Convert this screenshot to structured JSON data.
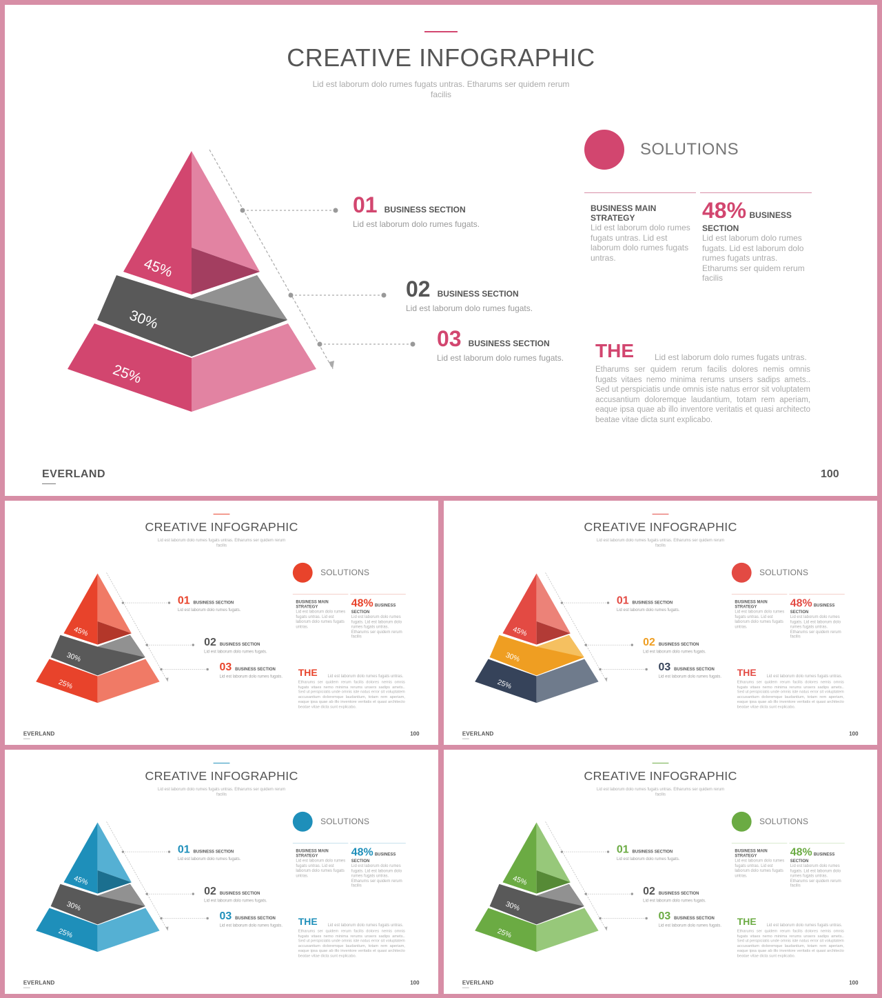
{
  "title": "CREATIVE INFOGRAPHIC",
  "subtitle": "Lid est laborum dolo rumes fugats untras. Etharums ser quidem rerum facilis",
  "pyramid": {
    "levels": [
      {
        "label": "45%",
        "value": 45
      },
      {
        "label": "30%",
        "value": 30
      },
      {
        "label": "25%",
        "value": 25
      }
    ]
  },
  "sections": [
    {
      "num": "01",
      "title": "BUSINESS SECTION",
      "desc": "Lid est laborum dolo rumes fugats."
    },
    {
      "num": "02",
      "title": "BUSINESS SECTION",
      "desc": "Lid est laborum dolo rumes fugats."
    },
    {
      "num": "03",
      "title": "BUSINESS SECTION",
      "desc": "Lid est laborum dolo rumes fugats."
    }
  ],
  "solutions": {
    "label": "SOLUTIONS",
    "strategy_title": "BUSINESS MAIN STRATEGY",
    "strategy_text": "Lid est laborum dolo rumes fugats untras. Lid est laborum dolo rumes fugats untras.",
    "percent": "48%",
    "percent_label_1": "BUSINESS",
    "percent_label_2": "SECTION",
    "percent_text": "Lid est laborum dolo rumes fugats. Lid est laborum dolo rumes fugats untras. Etharums ser quidem rerum facilis"
  },
  "the_block": {
    "heading": "THE",
    "heading_text": "Lid est laborum dolo rumes fugats untras.",
    "body": "Etharums ser quidem rerum facilis dolores nemis omnis fugats vitaes nemo minima rerums unsers sadips amets.. Sed ut perspiciatis unde omnis iste natus error sit voluptatem accusantium doloremque laudantium, totam rem aperiam, eaque ipsa quae ab illo inventore veritatis et quasi architecto beatae vitae dicta sunt explicabo."
  },
  "brand": "EVERLAND",
  "page_number": "100",
  "variants": [
    {
      "name": "pink",
      "accent": "#d2466f",
      "top_dark": "#d2466f",
      "top_light": "#e283a2",
      "top_shadow": "#a33e60",
      "mid_dark": "#595959",
      "mid_light": "#919191",
      "bot_dark": "#d2466f",
      "bot_light": "#e283a2",
      "num_colors": [
        "#d2466f",
        "#555555",
        "#d2466f"
      ],
      "line": "#d78ea6"
    },
    {
      "name": "red",
      "accent": "#e8432b",
      "top_dark": "#e8432b",
      "top_light": "#f07a66",
      "top_shadow": "#b3372a",
      "mid_dark": "#595959",
      "mid_light": "#919191",
      "bot_dark": "#e8432b",
      "bot_light": "#f07a66",
      "num_colors": [
        "#e8432b",
        "#555555",
        "#e8432b"
      ],
      "line": "#e8a095"
    },
    {
      "name": "multi",
      "accent": "#e34a43",
      "top_dark": "#e34a43",
      "top_light": "#ec8278",
      "top_shadow": "#b23b36",
      "mid_dark": "#ef9e22",
      "mid_light": "#f5c060",
      "bot_dark": "#36435a",
      "bot_light": "#6f7b8c",
      "num_colors": [
        "#e34a43",
        "#ef9e22",
        "#36435a"
      ],
      "line": "#e8a095"
    },
    {
      "name": "blue",
      "accent": "#1e8fba",
      "top_dark": "#1e8fba",
      "top_light": "#55b0d3",
      "top_shadow": "#1b6f8f",
      "mid_dark": "#595959",
      "mid_light": "#919191",
      "bot_dark": "#1e8fba",
      "bot_light": "#55b0d3",
      "num_colors": [
        "#1e8fba",
        "#555555",
        "#1e8fba"
      ],
      "line": "#8fc4d8"
    },
    {
      "name": "green",
      "accent": "#6bab43",
      "top_dark": "#6bab43",
      "top_light": "#97c87a",
      "top_shadow": "#568a36",
      "mid_dark": "#595959",
      "mid_light": "#919191",
      "bot_dark": "#6bab43",
      "bot_light": "#97c87a",
      "num_colors": [
        "#6bab43",
        "#555555",
        "#6bab43"
      ],
      "line": "#b3d59d"
    }
  ]
}
